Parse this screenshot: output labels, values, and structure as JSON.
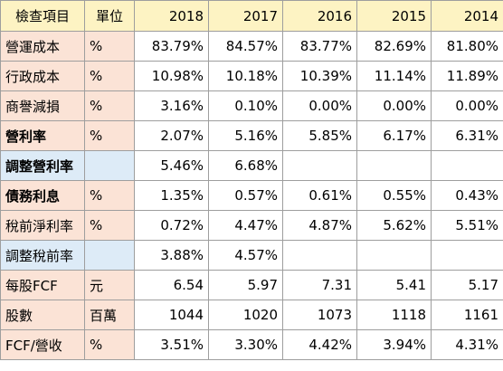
{
  "header": {
    "item": "檢查項目",
    "unit": "單位",
    "years": [
      "2018",
      "2017",
      "2016",
      "2015",
      "2014"
    ]
  },
  "rows": [
    {
      "label": "營運成本",
      "unit": "%",
      "values": [
        "83.79%",
        "84.57%",
        "83.77%",
        "82.69%",
        "81.80%"
      ]
    },
    {
      "label": "行政成本",
      "unit": "%",
      "values": [
        "10.98%",
        "10.18%",
        "10.39%",
        "11.14%",
        "11.89%"
      ]
    },
    {
      "label": "商譽減損",
      "unit": "%",
      "values": [
        "3.16%",
        "0.10%",
        "0.00%",
        "0.00%",
        "0.00%"
      ]
    },
    {
      "label": "營利率",
      "unit": "%",
      "values": [
        "2.07%",
        "5.16%",
        "5.85%",
        "6.17%",
        "6.31%"
      ]
    },
    {
      "label": "調整營利率",
      "unit": "",
      "values": [
        "5.46%",
        "6.68%",
        "",
        "",
        ""
      ]
    },
    {
      "label": "債務利息",
      "unit": "%",
      "values": [
        "1.35%",
        "0.57%",
        "0.61%",
        "0.55%",
        "0.43%"
      ]
    },
    {
      "label": "稅前淨利率",
      "unit": "%",
      "values": [
        "0.72%",
        "4.47%",
        "4.87%",
        "5.62%",
        "5.51%"
      ]
    },
    {
      "label": "調整稅前率",
      "unit": "",
      "values": [
        "3.88%",
        "4.57%",
        "",
        "",
        ""
      ]
    },
    {
      "label": "每股FCF",
      "unit": "元",
      "values": [
        "6.54",
        "5.97",
        "7.31",
        "5.41",
        "5.17"
      ]
    },
    {
      "label": "股數",
      "unit": "百萬",
      "values": [
        "1044",
        "1020",
        "1073",
        "1118",
        "1161"
      ]
    },
    {
      "label": "FCF/營收",
      "unit": "%",
      "values": [
        "3.51%",
        "3.30%",
        "4.42%",
        "3.94%",
        "4.31%"
      ]
    }
  ],
  "colors": {
    "header_bg": "#fdf3c3",
    "label_bg": "#fbe3d6",
    "adjusted_label_bg": "#ddebf7",
    "grid": "#9e9e9e"
  }
}
